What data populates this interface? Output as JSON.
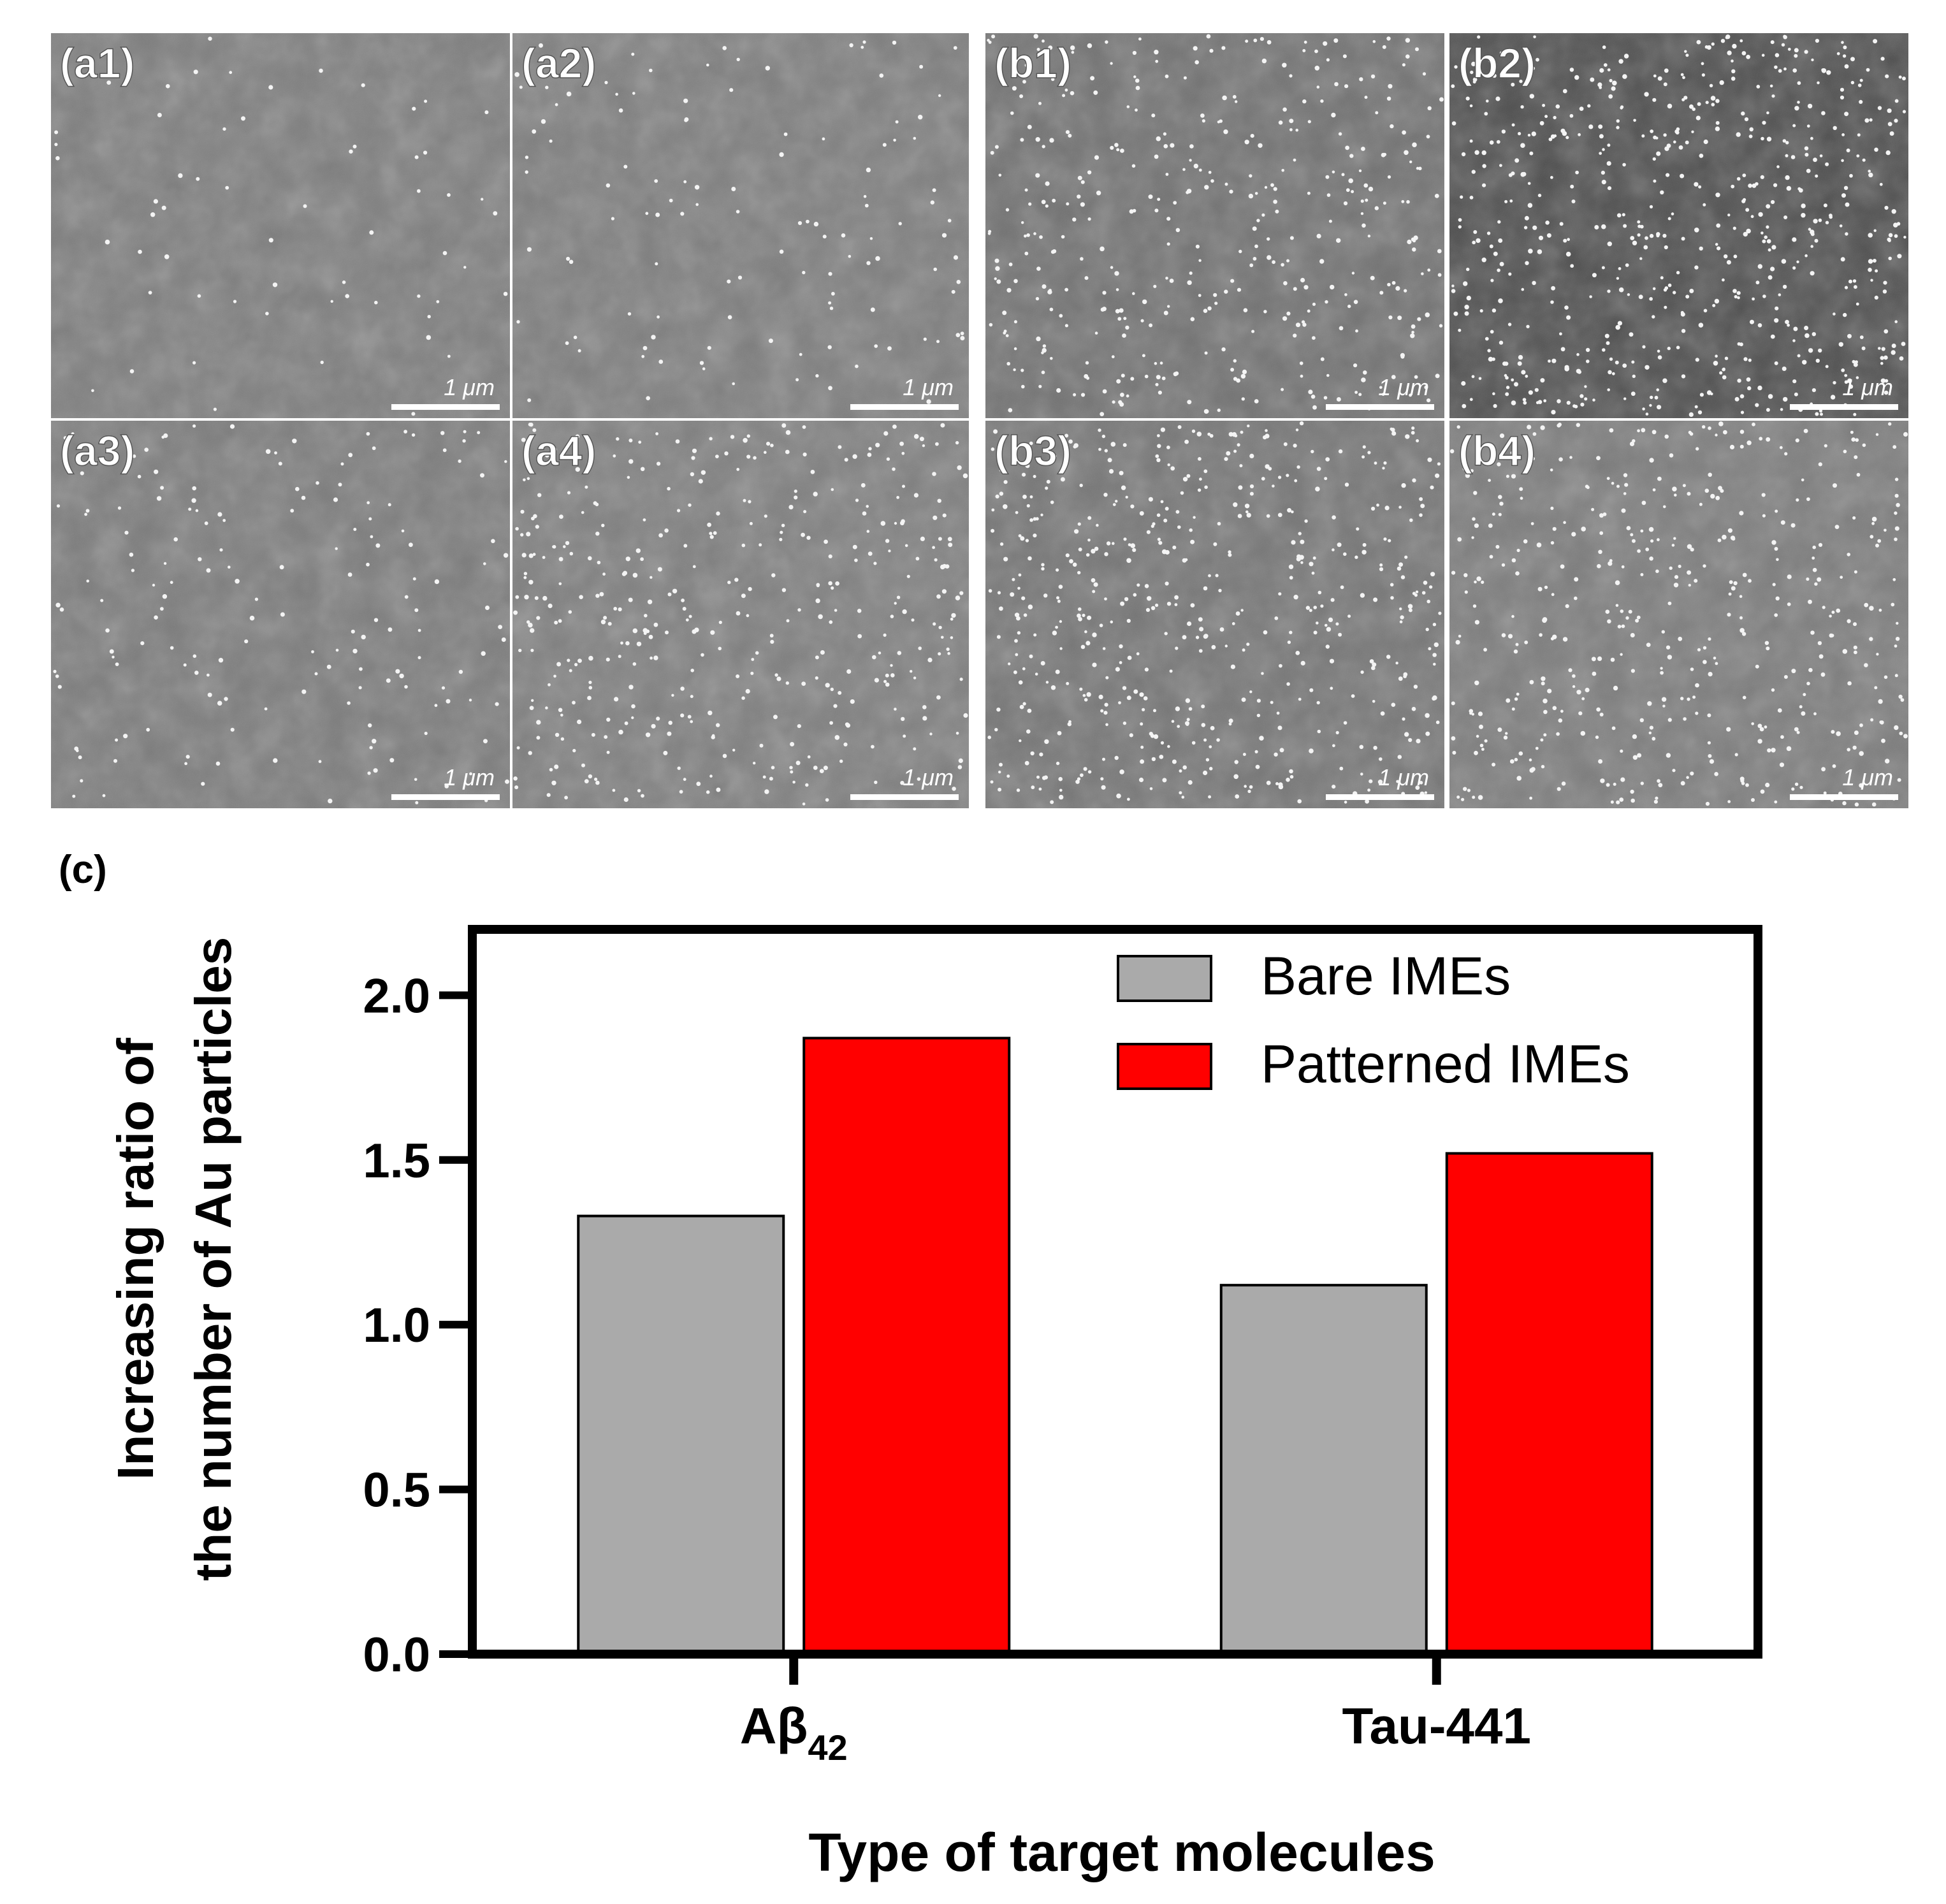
{
  "sem_panels": [
    {
      "label": "(a1)",
      "scale_bar": "1 μm"
    },
    {
      "label": "(a2)",
      "scale_bar": "1 μm"
    },
    {
      "label": "(b1)",
      "scale_bar": "1 μm"
    },
    {
      "label": "(b2)",
      "scale_bar": "1 μm"
    },
    {
      "label": "(a3)",
      "scale_bar": "1 μm"
    },
    {
      "label": "(a4)",
      "scale_bar": "1 μm"
    },
    {
      "label": "(b3)",
      "scale_bar": "1 μm"
    },
    {
      "label": "(b4)",
      "scale_bar": "1 μm"
    }
  ],
  "chart_panel_label": "(c)",
  "chart_data": {
    "type": "bar",
    "categories": [
      "Aβ42",
      "Tau-441"
    ],
    "category_labels": [
      {
        "main": "Aβ",
        "sub": "42"
      },
      {
        "main": "Tau-441",
        "sub": ""
      }
    ],
    "series": [
      {
        "name": "Bare IMEs",
        "values": [
          1.33,
          1.12
        ],
        "color": "#aaaaaa"
      },
      {
        "name": "Patterned IMEs",
        "values": [
          1.87,
          1.52
        ],
        "color": "#ff0000"
      }
    ],
    "ylim": [
      0,
      2.2
    ],
    "yticks": [
      0.0,
      0.5,
      1.0,
      1.5,
      2.0
    ],
    "ytick_labels": [
      "0.0",
      "0.5",
      "1.0",
      "1.5",
      "2.0"
    ],
    "ylabel_lines": [
      "Increasing ratio of",
      "the number of Au particles"
    ],
    "xlabel": "Type of target molecules",
    "legend_position": "top-right",
    "grid": false
  }
}
